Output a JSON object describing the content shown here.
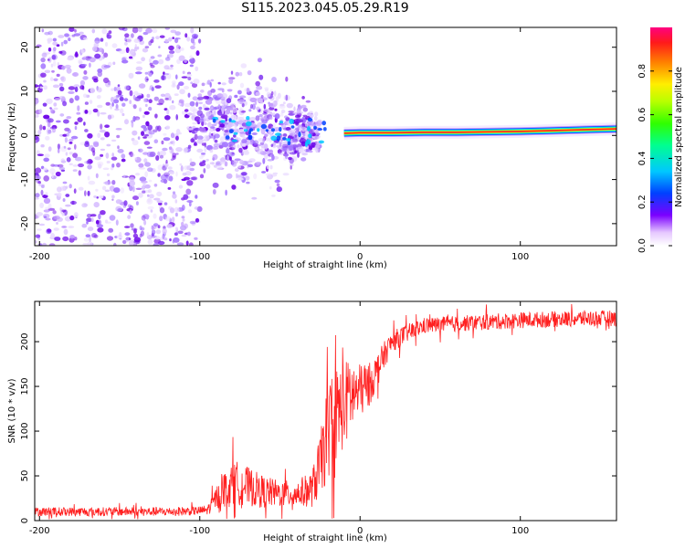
{
  "title": "S115.2023.045.05.29.R19",
  "colors": {
    "snr_line": "#ff2020",
    "spectral_blob": "#6a00e8",
    "spectral_trace_core": "#ff2a2a",
    "spectral_trace_edge": "#00e0ff"
  },
  "chart_data": [
    {
      "type": "heatmap",
      "name": "spectrogram",
      "xlabel": "Height of straight line (km)",
      "ylabel": "Frequency (Hz)",
      "xlim": [
        -203,
        160
      ],
      "ylim": [
        -25,
        24.5
      ],
      "x_ticks": [
        -200,
        -100,
        0,
        100
      ],
      "y_ticks": [
        -20,
        -10,
        0,
        10,
        20
      ],
      "x_tick_labels": [
        "-200",
        "-100",
        "0",
        "100"
      ],
      "y_tick_labels": [
        "-20",
        "-10",
        "0",
        "10",
        "20"
      ],
      "trace": {
        "description": "narrowband signal",
        "x": [
          -10,
          0,
          20,
          40,
          60,
          80,
          100,
          120,
          140,
          160
        ],
        "freq_hz": [
          0.5,
          0.6,
          0.6,
          0.7,
          0.7,
          0.8,
          0.9,
          1.1,
          1.3,
          1.5
        ]
      },
      "noise_regions": [
        {
          "x_range": [
            -203,
            -100
          ],
          "freq_range": [
            -25,
            24.5
          ]
        },
        {
          "x_range": [
            -100,
            -25
          ],
          "freq_range": [
            -15,
            8
          ]
        }
      ],
      "colorbar": {
        "label": "Normalized spectral amplitude",
        "range": [
          0.0,
          1.0
        ],
        "ticks": [
          0.0,
          0.2,
          0.4,
          0.6,
          0.8
        ],
        "tick_labels": [
          "0.0",
          "0.2",
          "0.4",
          "0.6",
          "0.8"
        ]
      }
    },
    {
      "type": "line",
      "name": "snr",
      "xlabel": "Height of straight line (km)",
      "ylabel": "SNR (10 * v/v)",
      "xlim": [
        -203,
        160
      ],
      "ylim": [
        0,
        245
      ],
      "x_ticks": [
        -200,
        -100,
        0,
        100
      ],
      "y_ticks": [
        0,
        50,
        100,
        150,
        200
      ],
      "x_tick_labels": [
        "-200",
        "-100",
        "0",
        "100"
      ],
      "y_tick_labels": [
        "0",
        "50",
        "100",
        "150",
        "200"
      ],
      "series": [
        {
          "name": "SNR",
          "x": [
            -203,
            -180,
            -160,
            -140,
            -120,
            -100,
            -95,
            -90,
            -85,
            -80,
            -75,
            -70,
            -60,
            -50,
            -40,
            -30,
            -25,
            -20,
            -15,
            -10,
            -5,
            0,
            5,
            10,
            15,
            20,
            30,
            40,
            60,
            80,
            100,
            120,
            140,
            160
          ],
          "y": [
            10,
            10,
            10,
            10,
            10,
            11,
            12,
            25,
            35,
            40,
            42,
            38,
            32,
            30,
            30,
            35,
            60,
            100,
            120,
            130,
            140,
            145,
            150,
            165,
            185,
            200,
            210,
            218,
            220,
            222,
            224,
            225,
            226,
            226
          ],
          "noise_amplitude": [
            5,
            5,
            5,
            5,
            5,
            5,
            6,
            12,
            20,
            25,
            25,
            22,
            18,
            15,
            15,
            20,
            35,
            55,
            55,
            50,
            40,
            30,
            25,
            20,
            15,
            12,
            10,
            9,
            9,
            9,
            9,
            9,
            9,
            9
          ]
        }
      ]
    }
  ]
}
